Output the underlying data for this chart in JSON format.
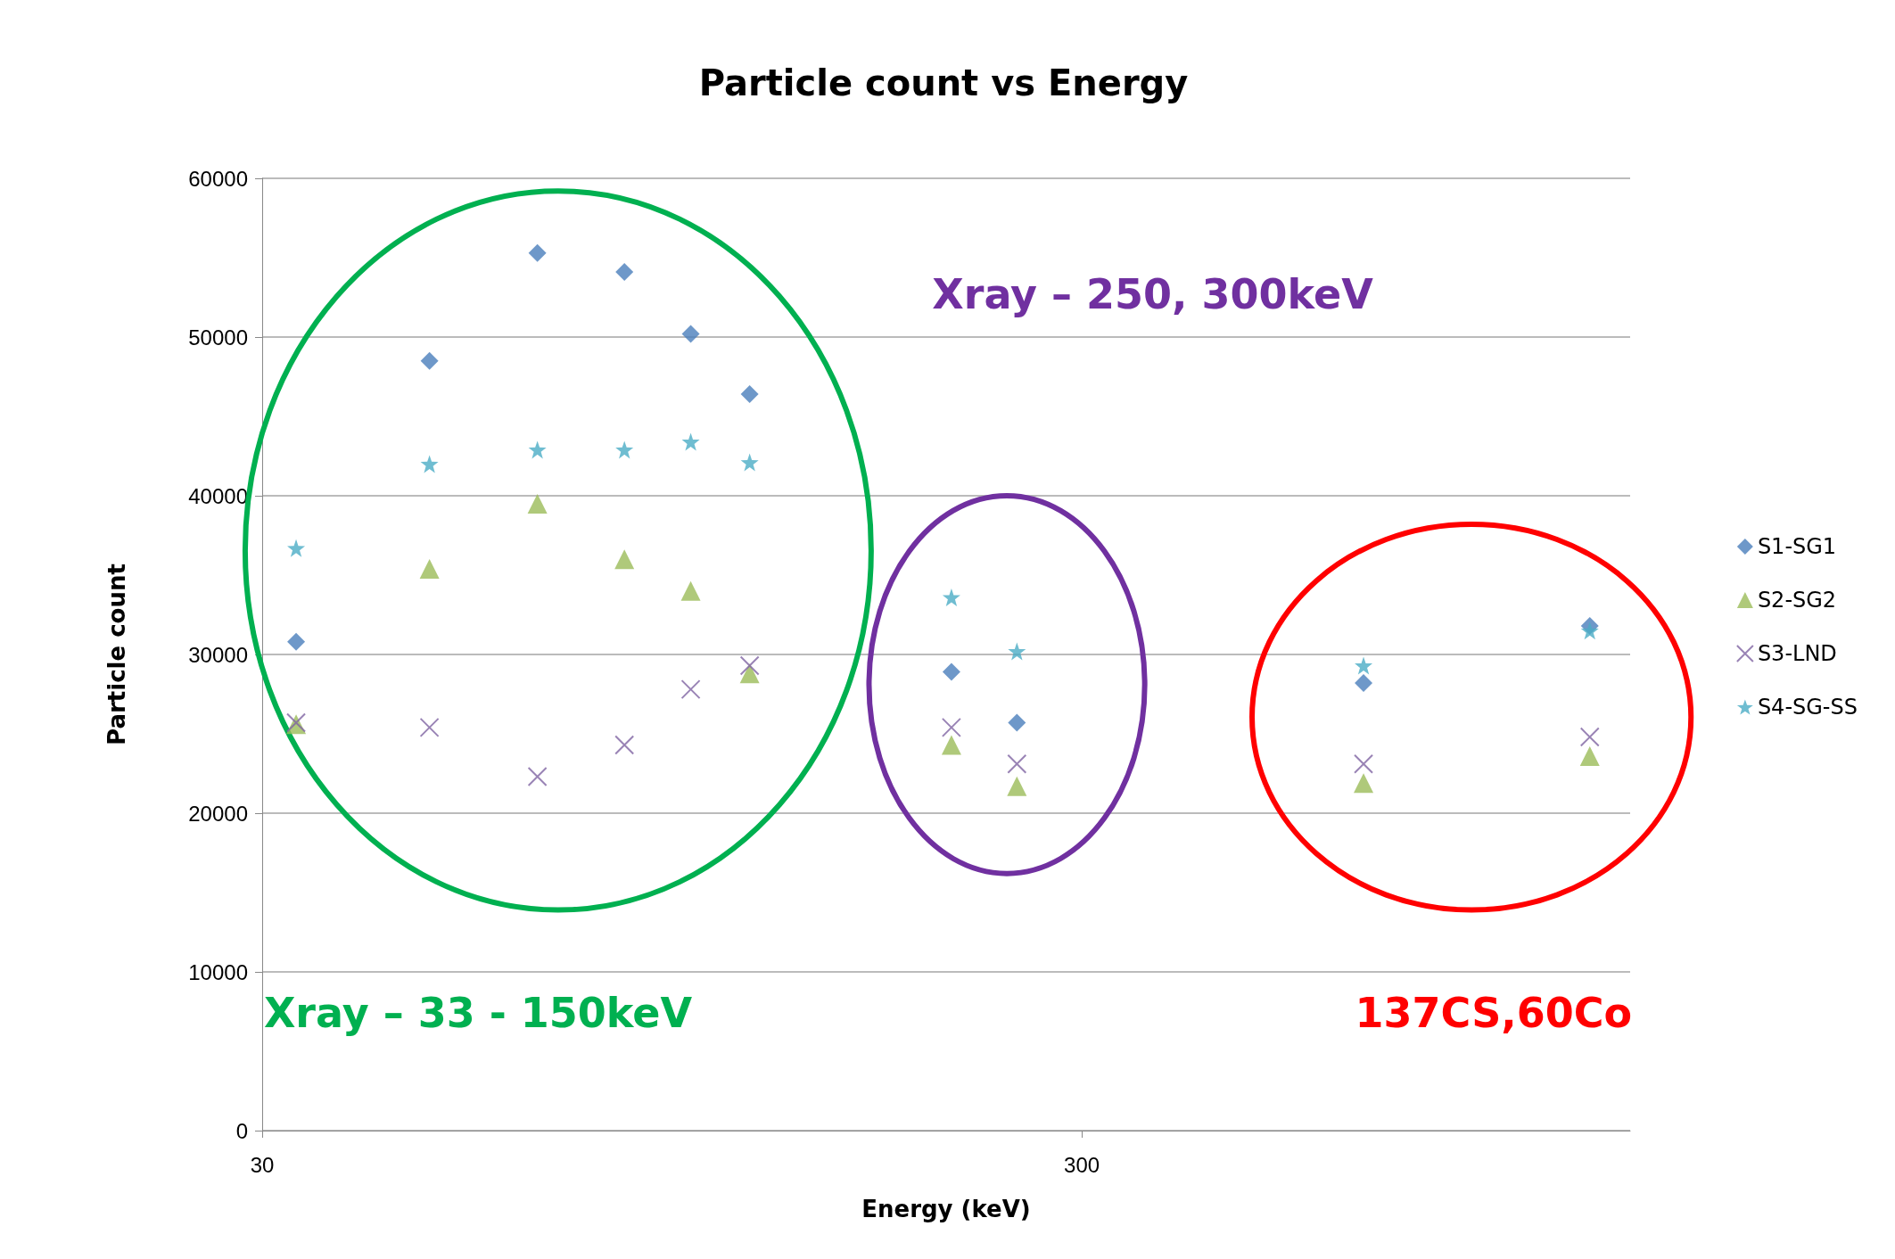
{
  "chart_data": {
    "type": "scatter",
    "title": "Particle count vs Energy",
    "xlabel": "Energy (keV)",
    "ylabel": "Particle count",
    "x": [
      33,
      48,
      65,
      83,
      100,
      118,
      208,
      250,
      662,
      1250
    ],
    "series": [
      {
        "name": "S1-SG1",
        "color": "#4a7ebb",
        "marker": "diamond",
        "values": [
          30800,
          48500,
          55300,
          54100,
          50200,
          46400,
          28900,
          25700,
          28200,
          31800
        ]
      },
      {
        "name": "S2-SG2",
        "color": "#9bbb59",
        "marker": "triangle",
        "values": [
          25600,
          35400,
          39500,
          36000,
          34000,
          28800,
          24300,
          21700,
          21900,
          23600
        ]
      },
      {
        "name": "S3-LND",
        "color": "#8064a2",
        "marker": "cross",
        "values": [
          25700,
          25400,
          22300,
          24300,
          27800,
          29300,
          25400,
          23100,
          23100,
          24800
        ]
      },
      {
        "name": "S4-SG-SS",
        "color": "#4bacc6",
        "marker": "star",
        "values": [
          36700,
          42000,
          42900,
          42900,
          43400,
          42100,
          33600,
          30200,
          29300,
          31500
        ]
      }
    ],
    "log": "x",
    "xlim": [
      30,
      1400
    ],
    "xticks": [
      30,
      300
    ],
    "ylim": [
      0,
      60000
    ],
    "yticks": [
      0,
      10000,
      20000,
      30000,
      40000,
      50000,
      60000
    ],
    "grid": "y",
    "legend": "right",
    "annotations": [
      "Xray – 33 - 150keV",
      "Xray – 250, 300keV",
      "137CS,60Co"
    ]
  }
}
